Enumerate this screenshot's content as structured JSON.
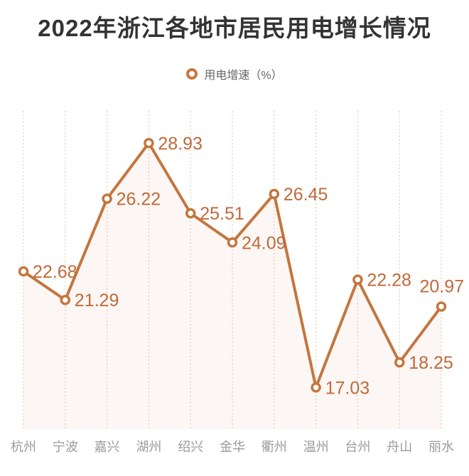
{
  "title": "2022年浙江各地市居民用电增长情况",
  "legend": {
    "label": "用电增速（%）",
    "marker": "hollow-circle"
  },
  "colors": {
    "background": "#ffffff",
    "title_text": "#333333",
    "legend_text": "#666666",
    "line": "#c4763e",
    "marker_fill": "#ffffff",
    "data_label": "#c2693a",
    "grid_line": "#e4bd97",
    "area_fill": "rgba(196,118,62,0.06)",
    "axis_text": "#9b9b9b"
  },
  "chart_data": {
    "type": "line",
    "title": "2022年浙江各地市居民用电增长情况",
    "categories": [
      "杭州",
      "宁波",
      "嘉兴",
      "湖州",
      "绍兴",
      "金华",
      "衢州",
      "温州",
      "台州",
      "舟山",
      "丽水"
    ],
    "series": [
      {
        "name": "用电增速（%）",
        "values": [
          22.68,
          21.29,
          26.22,
          28.93,
          25.51,
          24.09,
          26.45,
          17.03,
          22.28,
          18.25,
          20.97
        ]
      }
    ],
    "xlabel": "",
    "ylabel": "",
    "ylim": [
      15,
      30.5
    ],
    "grid": "vertical-dotted",
    "legend_position": "top-center",
    "marker": "hollow-circle",
    "area_fill": true,
    "data_labels_shown": true
  }
}
